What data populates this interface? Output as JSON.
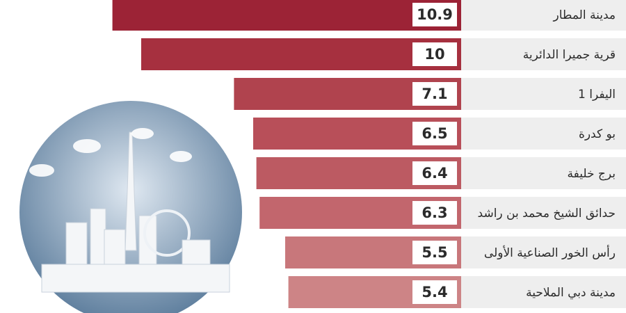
{
  "chart_data": {
    "type": "bar",
    "orientation": "horizontal",
    "categories": [
      "مدينة المطار",
      "قرية جميرا الدائرية",
      "اليفرا 1",
      "بو كدرة",
      "برج خليفة",
      "حدائق الشيخ محمد بن راشد",
      "رأس الخور الصناعية الأولى",
      "مدينة دبي الملاحية"
    ],
    "values": [
      10.9,
      10,
      7.1,
      6.5,
      6.4,
      6.3,
      5.5,
      5.4
    ],
    "colors": [
      "#9c2336",
      "#a6303f",
      "#b0434e",
      "#b84f59",
      "#bc5a62",
      "#c2666d",
      "#c8777b",
      "#cd8486"
    ]
  }
}
